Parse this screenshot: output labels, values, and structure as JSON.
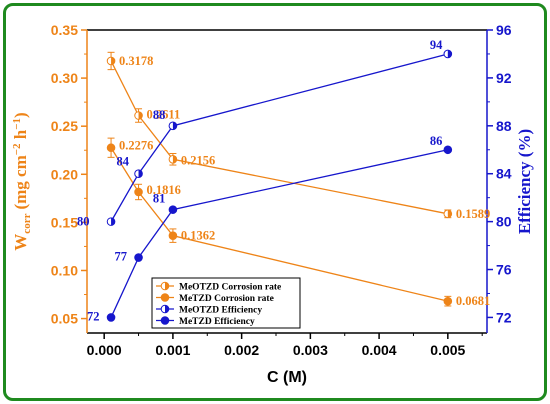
{
  "chart_data": {
    "type": "line",
    "xlabel": "C (M)",
    "ylabel_left": {
      "main": "W",
      "sub": "corr",
      "units": "(mg cm",
      "exp1": "−2",
      "h": " h",
      "exp2": "−1",
      "close": ")"
    },
    "ylabel_right": "Efficiency (%)",
    "x_ticks": [
      "0.000",
      "0.001",
      "0.002",
      "0.003",
      "0.004",
      "0.005"
    ],
    "x_tick_values": [
      0,
      0.001,
      0.002,
      0.003,
      0.004,
      0.005
    ],
    "xlim": [
      -0.00025,
      0.00557
    ],
    "y_left_ticks": [
      "0.05",
      "0.10",
      "0.15",
      "0.20",
      "0.25",
      "0.30",
      "0.35"
    ],
    "y_left_tick_values": [
      0.05,
      0.1,
      0.15,
      0.2,
      0.25,
      0.3,
      0.35
    ],
    "ylim_left": [
      0.035,
      0.35
    ],
    "y_right_ticks": [
      "72",
      "76",
      "80",
      "84",
      "88",
      "92",
      "96"
    ],
    "y_right_tick_values": [
      72,
      76,
      80,
      84,
      88,
      92,
      96
    ],
    "ylim_right": [
      70.7,
      96
    ],
    "grid": false,
    "legend_position": "bottom-left",
    "colors": {
      "left_axis": "#ee8418",
      "right_axis": "#1616cc",
      "frame": "#1f8a1f"
    },
    "series": [
      {
        "name": "MeOTZD Corrosion rate",
        "axis": "left",
        "marker": "half-circle",
        "x": [
          0.0001,
          0.0005,
          0.001,
          0.005
        ],
        "y": [
          0.3178,
          0.2611,
          0.2156,
          0.1589
        ],
        "labels": [
          "0.3178",
          "0.2611",
          "0.2156",
          "0.1589"
        ],
        "error": [
          0.009,
          0.007,
          0.006,
          0.004
        ]
      },
      {
        "name": "MeTZD Corrosion rate",
        "axis": "left",
        "marker": "circle",
        "x": [
          0.0001,
          0.0005,
          0.001,
          0.005
        ],
        "y": [
          0.2276,
          0.1816,
          0.1362,
          0.0681
        ],
        "labels": [
          "0.2276",
          "0.1816",
          "0.1362",
          "0.0681"
        ],
        "error": [
          0.01,
          0.008,
          0.007,
          0.005
        ]
      },
      {
        "name": "MeOTZD Efficiency",
        "axis": "right",
        "marker": "half-circle",
        "x": [
          0.0001,
          0.0005,
          0.001,
          0.005
        ],
        "y": [
          80,
          84,
          88,
          94
        ],
        "labels": [
          "80",
          "84",
          "88",
          "94"
        ]
      },
      {
        "name": "MeTZD Efficiency",
        "axis": "right",
        "marker": "circle",
        "x": [
          0.0001,
          0.0005,
          0.001,
          0.005
        ],
        "y": [
          72,
          77,
          81,
          86
        ],
        "labels": [
          "72",
          "77",
          "81",
          "86"
        ]
      }
    ]
  }
}
